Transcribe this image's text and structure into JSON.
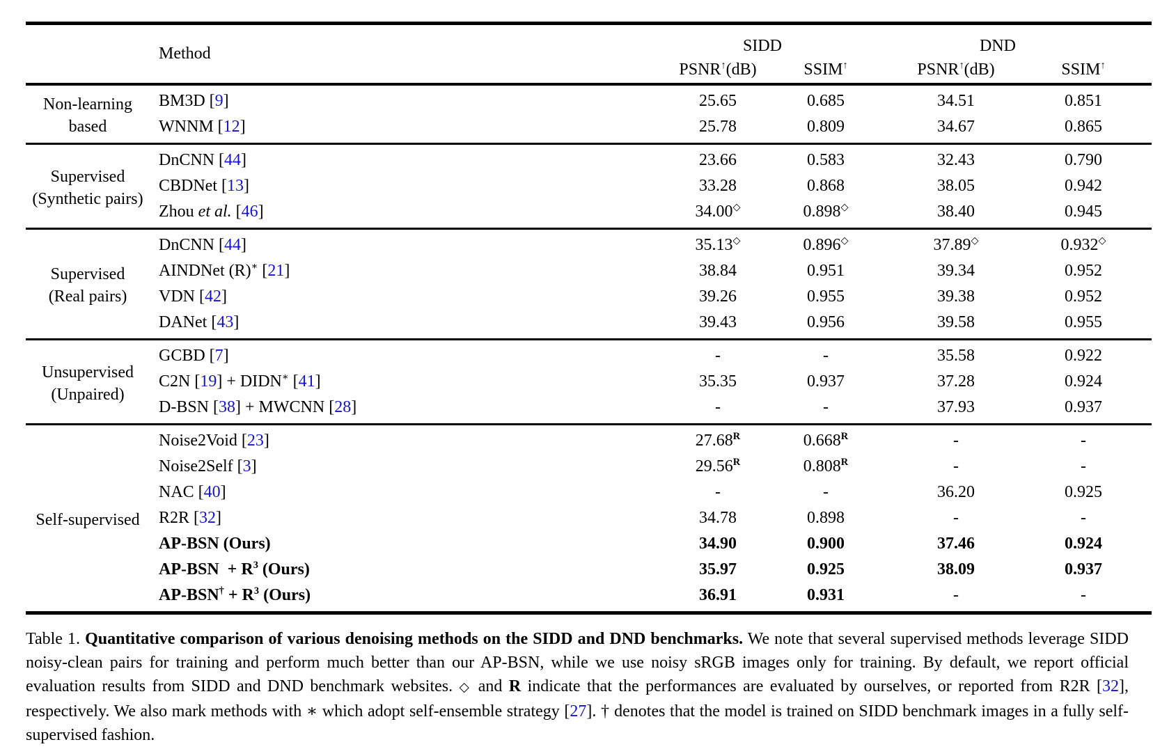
{
  "colors": {
    "text": "#000000",
    "background": "#ffffff",
    "rule": "#000000",
    "ref_blue": "#1414cd"
  },
  "header": {
    "method_label": "Method",
    "groups": [
      {
        "label": "SIDD"
      },
      {
        "label": "DND"
      }
    ],
    "psnr_label": "PSNR",
    "db_label": "(dB)",
    "ssim_label": "SSIM",
    "arrow": "↑"
  },
  "sections": [
    {
      "category": [
        "Non-learning based"
      ],
      "rows": [
        {
          "method": [
            {
              "t": "BM3D ["
            },
            {
              "t": "9",
              "ref": true
            },
            {
              "t": "]"
            }
          ],
          "values": [
            {
              "t": "25.65"
            },
            {
              "t": "0.685"
            },
            {
              "t": "34.51"
            },
            {
              "t": "0.851"
            }
          ]
        },
        {
          "method": [
            {
              "t": "WNNM ["
            },
            {
              "t": "12",
              "ref": true
            },
            {
              "t": "]"
            }
          ],
          "values": [
            {
              "t": "25.78"
            },
            {
              "t": "0.809"
            },
            {
              "t": "34.67"
            },
            {
              "t": "0.865"
            }
          ]
        }
      ]
    },
    {
      "category": [
        "Supervised",
        "(Synthetic pairs)"
      ],
      "rows": [
        {
          "method": [
            {
              "t": "DnCNN ["
            },
            {
              "t": "44",
              "ref": true
            },
            {
              "t": "]"
            }
          ],
          "values": [
            {
              "t": "23.66"
            },
            {
              "t": "0.583"
            },
            {
              "t": "32.43"
            },
            {
              "t": "0.790"
            }
          ]
        },
        {
          "method": [
            {
              "t": "CBDNet ["
            },
            {
              "t": "13",
              "ref": true
            },
            {
              "t": "]"
            }
          ],
          "values": [
            {
              "t": "33.28"
            },
            {
              "t": "0.868"
            },
            {
              "t": "38.05"
            },
            {
              "t": "0.942"
            }
          ]
        },
        {
          "method": [
            {
              "t": "Zhou "
            },
            {
              "t": "et al.",
              "i": true
            },
            {
              "t": " ["
            },
            {
              "t": "46",
              "ref": true
            },
            {
              "t": "]"
            }
          ],
          "values": [
            {
              "t": "34.00",
              "sup": "◇"
            },
            {
              "t": "0.898",
              "sup": "◇"
            },
            {
              "t": "38.40"
            },
            {
              "t": "0.945"
            }
          ]
        }
      ]
    },
    {
      "category": [
        "Supervised",
        "(Real pairs)"
      ],
      "rows": [
        {
          "method": [
            {
              "t": "DnCNN ["
            },
            {
              "t": "44",
              "ref": true
            },
            {
              "t": "]"
            }
          ],
          "values": [
            {
              "t": "35.13",
              "sup": "◇"
            },
            {
              "t": "0.896",
              "sup": "◇"
            },
            {
              "t": "37.89",
              "sup": "◇"
            },
            {
              "t": "0.932",
              "sup": "◇"
            }
          ]
        },
        {
          "method": [
            {
              "t": "AINDNet (R)"
            },
            {
              "t": "∗",
              "sup": true
            },
            {
              "t": " ["
            },
            {
              "t": "21",
              "ref": true
            },
            {
              "t": "]"
            }
          ],
          "values": [
            {
              "t": "38.84"
            },
            {
              "t": "0.951"
            },
            {
              "t": "39.34"
            },
            {
              "t": "0.952"
            }
          ]
        },
        {
          "method": [
            {
              "t": "VDN ["
            },
            {
              "t": "42",
              "ref": true
            },
            {
              "t": "]"
            }
          ],
          "values": [
            {
              "t": "39.26"
            },
            {
              "t": "0.955"
            },
            {
              "t": "39.38"
            },
            {
              "t": "0.952"
            }
          ]
        },
        {
          "method": [
            {
              "t": "DANet ["
            },
            {
              "t": "43",
              "ref": true
            },
            {
              "t": "]"
            }
          ],
          "values": [
            {
              "t": "39.43"
            },
            {
              "t": "0.956"
            },
            {
              "t": "39.58"
            },
            {
              "t": "0.955"
            }
          ]
        }
      ]
    },
    {
      "category": [
        "Unsupervised",
        "(Unpaired)"
      ],
      "rows": [
        {
          "method": [
            {
              "t": "GCBD ["
            },
            {
              "t": "7",
              "ref": true
            },
            {
              "t": "]"
            }
          ],
          "values": [
            {
              "t": "-"
            },
            {
              "t": "-"
            },
            {
              "t": "35.58"
            },
            {
              "t": "0.922"
            }
          ]
        },
        {
          "method": [
            {
              "t": "C2N ["
            },
            {
              "t": "19",
              "ref": true
            },
            {
              "t": "] + DIDN"
            },
            {
              "t": "∗",
              "sup": true
            },
            {
              "t": " ["
            },
            {
              "t": "41",
              "ref": true
            },
            {
              "t": "]"
            }
          ],
          "values": [
            {
              "t": "35.35"
            },
            {
              "t": "0.937"
            },
            {
              "t": "37.28"
            },
            {
              "t": "0.924"
            }
          ]
        },
        {
          "method": [
            {
              "t": "D-BSN ["
            },
            {
              "t": "38",
              "ref": true
            },
            {
              "t": "] + MWCNN ["
            },
            {
              "t": "28",
              "ref": true
            },
            {
              "t": "]"
            }
          ],
          "values": [
            {
              "t": "-"
            },
            {
              "t": "-"
            },
            {
              "t": "37.93"
            },
            {
              "t": "0.937"
            }
          ]
        }
      ]
    },
    {
      "category": [
        "Self-supervised"
      ],
      "rows": [
        {
          "method": [
            {
              "t": "Noise2Void ["
            },
            {
              "t": "23",
              "ref": true
            },
            {
              "t": "]"
            }
          ],
          "values": [
            {
              "t": "27.68",
              "sup": "R",
              "supb": true
            },
            {
              "t": "0.668",
              "sup": "R",
              "supb": true
            },
            {
              "t": "-"
            },
            {
              "t": "-"
            }
          ]
        },
        {
          "method": [
            {
              "t": "Noise2Self ["
            },
            {
              "t": "3",
              "ref": true
            },
            {
              "t": "]"
            }
          ],
          "values": [
            {
              "t": "29.56",
              "sup": "R",
              "supb": true
            },
            {
              "t": "0.808",
              "sup": "R",
              "supb": true
            },
            {
              "t": "-"
            },
            {
              "t": "-"
            }
          ]
        },
        {
          "method": [
            {
              "t": "NAC ["
            },
            {
              "t": "40",
              "ref": true
            },
            {
              "t": "]"
            }
          ],
          "values": [
            {
              "t": "-"
            },
            {
              "t": "-"
            },
            {
              "t": "36.20"
            },
            {
              "t": "0.925"
            }
          ]
        },
        {
          "method": [
            {
              "t": "R2R ["
            },
            {
              "t": "32",
              "ref": true
            },
            {
              "t": "]"
            }
          ],
          "values": [
            {
              "t": "34.78"
            },
            {
              "t": "0.898"
            },
            {
              "t": "-"
            },
            {
              "t": "-"
            }
          ]
        },
        {
          "method": [
            {
              "t": "AP-BSN (Ours)",
              "b": true
            }
          ],
          "values": [
            {
              "t": "34.90",
              "b": true
            },
            {
              "t": "0.900",
              "b": true
            },
            {
              "t": "37.46",
              "b": true
            },
            {
              "t": "0.924",
              "b": true
            }
          ]
        },
        {
          "method": [
            {
              "t": "AP-BSN  + R",
              "b": true
            },
            {
              "t": "3",
              "b": true,
              "sup": true
            },
            {
              "t": " (Ours)",
              "b": true
            }
          ],
          "values": [
            {
              "t": "35.97",
              "b": true
            },
            {
              "t": "0.925",
              "b": true
            },
            {
              "t": "38.09",
              "b": true
            },
            {
              "t": "0.937",
              "b": true
            }
          ]
        },
        {
          "method": [
            {
              "t": "AP-BSN",
              "b": true
            },
            {
              "t": "†",
              "b": true,
              "sup": true
            },
            {
              "t": " + R",
              "b": true
            },
            {
              "t": "3",
              "b": true,
              "sup": true
            },
            {
              "t": " (Ours)",
              "b": true
            }
          ],
          "values": [
            {
              "t": "36.91",
              "b": true
            },
            {
              "t": "0.931",
              "b": true
            },
            {
              "t": "-"
            },
            {
              "t": "-"
            }
          ]
        }
      ]
    }
  ],
  "caption": [
    {
      "t": "Table 1. "
    },
    {
      "t": "Quantitative comparison of various denoising methods on the SIDD and DND benchmarks.",
      "b": true
    },
    {
      "t": " We note that several supervised methods leverage SIDD noisy-clean pairs for training and perform much better than our AP-BSN, while we use noisy sRGB images only for training. By default, we report official evaluation results from SIDD and DND benchmark websites. "
    },
    {
      "t": "◇",
      "small": true
    },
    {
      "t": " and "
    },
    {
      "t": "R",
      "b": true
    },
    {
      "t": " indicate that the performances are evaluated by ourselves, or reported from R2R ["
    },
    {
      "t": "32",
      "ref": true
    },
    {
      "t": "], respectively. We also mark methods with "
    },
    {
      "t": "∗"
    },
    {
      "t": " which adopt self-ensemble strategy ["
    },
    {
      "t": "27",
      "ref": true
    },
    {
      "t": "]. † denotes that the model is trained on SIDD benchmark images in a fully self-supervised fashion."
    }
  ]
}
